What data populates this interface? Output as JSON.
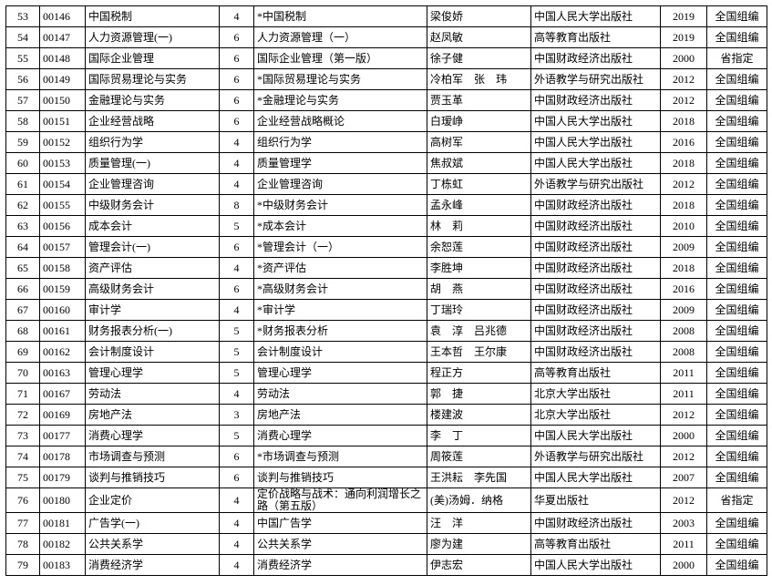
{
  "table": {
    "rows": [
      [
        "53",
        "00146",
        "中国税制",
        "4",
        "*中国税制",
        "梁俊娇",
        "中国人民大学出版社",
        "2019",
        "全国组编"
      ],
      [
        "54",
        "00147",
        "人力资源管理(一)",
        "6",
        "人力资源管理（一）",
        "赵凤敏",
        "高等教育出版社",
        "2019",
        "全国组编"
      ],
      [
        "55",
        "00148",
        "国际企业管理",
        "6",
        "国际企业管理（第一版）",
        "徐子健",
        "中国财政经济出版社",
        "2000",
        "省指定"
      ],
      [
        "56",
        "00149",
        "国际贸易理论与实务",
        "6",
        "*国际贸易理论与实务",
        "冷柏军　张　玮",
        "外语教学与研究出版社",
        "2012",
        "全国组编"
      ],
      [
        "57",
        "00150",
        "金融理论与实务",
        "6",
        "*金融理论与实务",
        "贾玉革",
        "中国财政经济出版社",
        "2012",
        "全国组编"
      ],
      [
        "58",
        "00151",
        "企业经营战略",
        "6",
        "企业经营战略概论",
        "白瑷峥",
        "中国人民大学出版社",
        "2018",
        "全国组编"
      ],
      [
        "59",
        "00152",
        "组织行为学",
        "4",
        "组织行为学",
        "高树军",
        "中国人民大学出版社",
        "2016",
        "全国组编"
      ],
      [
        "60",
        "00153",
        "质量管理(一)",
        "4",
        "质量管理学",
        "焦叔斌",
        "中国人民大学出版社",
        "2018",
        "全国组编"
      ],
      [
        "61",
        "00154",
        "企业管理咨询",
        "4",
        "企业管理咨询",
        "丁栋虹",
        "外语教学与研究出版社",
        "2012",
        "全国组编"
      ],
      [
        "62",
        "00155",
        "中级财务会计",
        "8",
        "*中级财务会计",
        "孟永峰",
        "中国财政经济出版社",
        "2018",
        "全国组编"
      ],
      [
        "63",
        "00156",
        "成本会计",
        "5",
        "*成本会计",
        "林　莉",
        "中国财政经济出版社",
        "2010",
        "全国组编"
      ],
      [
        "64",
        "00157",
        "管理会计(一)",
        "6",
        "*管理会计（一）",
        "余恕莲",
        "中国财政经济出版社",
        "2009",
        "全国组编"
      ],
      [
        "65",
        "00158",
        "资产评估",
        "4",
        "*资产评估",
        "李胜坤",
        "中国财政经济出版社",
        "2018",
        "全国组编"
      ],
      [
        "66",
        "00159",
        "高级财务会计",
        "6",
        "*高级财务会计",
        "胡　燕",
        "中国财政经济出版社",
        "2016",
        "全国组编"
      ],
      [
        "67",
        "00160",
        "审计学",
        "4",
        "*审计学",
        "丁瑞玲",
        "中国财政经济出版社",
        "2009",
        "全国组编"
      ],
      [
        "68",
        "00161",
        "财务报表分析(一)",
        "5",
        "*财务报表分析",
        "袁　淳　吕兆德",
        "中国财政经济出版社",
        "2008",
        "全国组编"
      ],
      [
        "69",
        "00162",
        "会计制度设计",
        "5",
        "会计制度设计",
        "王本哲　王尔康",
        "中国财政经济出版社",
        "2008",
        "全国组编"
      ],
      [
        "70",
        "00163",
        "管理心理学",
        "5",
        "管理心理学",
        "程正方",
        "高等教育出版社",
        "2011",
        "全国组编"
      ],
      [
        "71",
        "00167",
        "劳动法",
        "4",
        "劳动法",
        "郭　捷",
        "北京大学出版社",
        "2011",
        "全国组编"
      ],
      [
        "72",
        "00169",
        "房地产法",
        "3",
        "房地产法",
        "楼建波",
        "北京大学出版社",
        "2012",
        "全国组编"
      ],
      [
        "73",
        "00177",
        "消费心理学",
        "5",
        "消费心理学",
        "李　丁",
        "中国人民大学出版社",
        "2000",
        "全国组编"
      ],
      [
        "74",
        "00178",
        "市场调查与预测",
        "6",
        "*市场调查与预测",
        "周筱莲",
        "外语教学与研究出版社",
        "2012",
        "全国组编"
      ],
      [
        "75",
        "00179",
        "谈判与推销技巧",
        "6",
        "谈判与推销技巧",
        "王洪耘　李先国",
        "中国人民大学出版社",
        "2007",
        "全国组编"
      ],
      [
        "76",
        "00180",
        "企业定价",
        "4",
        "定价战略与战术：通向利润增长之路（第五版）",
        "(美)汤姆．纳格",
        "华夏出版社",
        "2012",
        "省指定"
      ],
      [
        "77",
        "00181",
        "广告学(一)",
        "4",
        "中国广告学",
        "汪　洋",
        "中国财政经济出版社",
        "2003",
        "全国组编"
      ],
      [
        "78",
        "00182",
        "公共关系学",
        "4",
        "公共关系学",
        "廖为建",
        "高等教育出版社",
        "2011",
        "全国组编"
      ],
      [
        "79",
        "00183",
        "消费经济学",
        "4",
        "消费经济学",
        "伊志宏",
        "中国人民大学出版社",
        "2000",
        "全国组编"
      ]
    ]
  }
}
